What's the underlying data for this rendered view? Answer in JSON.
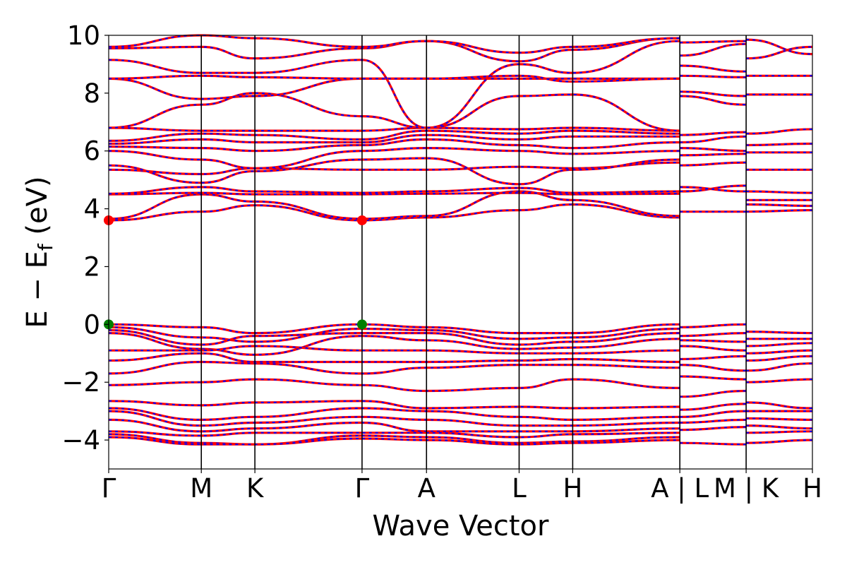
{
  "chart_data": {
    "type": "line",
    "title": "",
    "xlabel": "Wave Vector",
    "ylabel_main": "E − E",
    "ylabel_sub": "f",
    "ylabel_tail": " (eV)",
    "ylim": [
      -5,
      10
    ],
    "yticks": [
      10,
      8,
      6,
      4,
      2,
      0,
      -2,
      -4
    ],
    "ytick_labels": [
      "10",
      "8",
      "6",
      "4",
      "2",
      "0",
      "−2",
      "−4"
    ],
    "x_range": [
      0,
      7.75
    ],
    "kpoints": [
      {
        "label": "Γ",
        "x": 0.0
      },
      {
        "label": "M",
        "x": 1.02
      },
      {
        "label": "K",
        "x": 1.61
      },
      {
        "label": "Γ",
        "x": 2.79
      },
      {
        "label": "A",
        "x": 3.5
      },
      {
        "label": "L",
        "x": 4.52
      },
      {
        "label": "H",
        "x": 5.11
      },
      {
        "label": "A | L",
        "x": 6.29
      },
      {
        "label": "M | K",
        "x": 7.02
      },
      {
        "label": "H",
        "x": 7.75
      }
    ],
    "grid": false,
    "colors": {
      "band_main": "#ff0000",
      "band_dash": "#0000ff",
      "cbm_marker": "#ff0000",
      "vbm_marker": "#008000"
    },
    "markers": [
      {
        "kind": "CBM",
        "x": 0.0,
        "y": 3.6
      },
      {
        "kind": "CBM",
        "x": 2.79,
        "y": 3.6
      },
      {
        "kind": "VBM",
        "x": 0.0,
        "y": 0.0
      },
      {
        "kind": "VBM",
        "x": 2.79,
        "y": 0.0
      }
    ],
    "series": [
      {
        "x": [
          0,
          1.02,
          1.61,
          2.79,
          3.5,
          4.52,
          5.11,
          6.29
        ],
        "y": [
          3.6,
          3.9,
          4.12,
          3.6,
          3.7,
          3.95,
          4.15,
          3.7
        ]
      },
      {
        "x": [
          0,
          1.02,
          1.61,
          2.79,
          3.5,
          4.52,
          5.11,
          6.29
        ],
        "y": [
          3.65,
          4.5,
          4.25,
          3.65,
          3.75,
          4.6,
          4.3,
          3.75
        ]
      },
      {
        "x": [
          0,
          1.02,
          1.61,
          2.79,
          3.5,
          4.52,
          5.11,
          6.29
        ],
        "y": [
          4.5,
          4.55,
          4.5,
          4.5,
          4.52,
          4.55,
          4.5,
          4.52
        ]
      },
      {
        "x": [
          0,
          1.02,
          1.61,
          2.79,
          3.5,
          4.52,
          5.11,
          6.29
        ],
        "y": [
          4.52,
          4.75,
          4.6,
          4.55,
          4.6,
          4.72,
          4.55,
          4.6
        ]
      },
      {
        "x": [
          0,
          1.02,
          1.61,
          2.79,
          3.5,
          4.52,
          5.11,
          6.29
        ],
        "y": [
          5.35,
          5.2,
          5.4,
          5.35,
          5.35,
          5.45,
          5.4,
          5.6
        ]
      },
      {
        "x": [
          0,
          1.02,
          1.61,
          2.79,
          3.5,
          4.52,
          5.11,
          6.29
        ],
        "y": [
          5.5,
          4.9,
          5.3,
          5.7,
          5.75,
          4.85,
          5.35,
          5.7
        ]
      },
      {
        "x": [
          0,
          1.02,
          1.61,
          2.79,
          3.5,
          4.52,
          5.11,
          6.29
        ],
        "y": [
          6.0,
          5.7,
          5.4,
          6.0,
          6.1,
          6.0,
          5.9,
          6.0
        ]
      },
      {
        "x": [
          0,
          1.02,
          1.61,
          2.79,
          3.5,
          4.52,
          5.11,
          6.29
        ],
        "y": [
          6.15,
          6.1,
          6.0,
          6.2,
          6.4,
          6.2,
          6.1,
          6.3
        ]
      },
      {
        "x": [
          0,
          1.02,
          1.61,
          2.79,
          3.5,
          4.52,
          5.11,
          6.29
        ],
        "y": [
          6.25,
          6.4,
          6.3,
          6.3,
          6.55,
          6.4,
          6.5,
          6.5
        ]
      },
      {
        "x": [
          0,
          1.02,
          1.61,
          2.79,
          3.5,
          4.52,
          5.11,
          6.29
        ],
        "y": [
          6.35,
          6.6,
          6.55,
          6.4,
          6.7,
          6.6,
          6.7,
          6.6
        ]
      },
      {
        "x": [
          0,
          1.02,
          1.61,
          2.79,
          3.5,
          4.52,
          5.11,
          6.29
        ],
        "y": [
          6.8,
          6.7,
          6.7,
          6.7,
          6.8,
          6.75,
          6.8,
          6.7
        ]
      },
      {
        "x": [
          0,
          1.02,
          1.61,
          2.79,
          3.5,
          4.52,
          5.11,
          6.29
        ],
        "y": [
          6.8,
          7.6,
          8.0,
          7.2,
          6.8,
          7.9,
          7.95,
          6.7
        ]
      },
      {
        "x": [
          0,
          1.02,
          1.61,
          2.79,
          3.5,
          4.52,
          5.11,
          6.29
        ],
        "y": [
          8.5,
          7.8,
          7.9,
          8.5,
          8.5,
          8.5,
          8.5,
          8.5
        ]
      },
      {
        "x": [
          0,
          1.02,
          1.61,
          2.79,
          3.5,
          4.52,
          5.11,
          6.29
        ],
        "y": [
          8.5,
          8.6,
          8.55,
          8.5,
          8.5,
          8.6,
          8.4,
          8.5
        ]
      },
      {
        "x": [
          0,
          1.02,
          1.61,
          2.79,
          3.5,
          4.52,
          5.11,
          6.29
        ],
        "y": [
          9.15,
          8.7,
          8.7,
          9.15,
          6.8,
          9.0,
          8.7,
          9.8
        ]
      },
      {
        "x": [
          0,
          1.02,
          1.61,
          2.79,
          3.5,
          4.52,
          5.11,
          6.29
        ],
        "y": [
          9.55,
          9.6,
          9.2,
          9.55,
          9.8,
          9.1,
          9.5,
          9.9
        ]
      },
      {
        "x": [
          0,
          1.02,
          1.61,
          2.79,
          3.5,
          4.52,
          5.11,
          6.29
        ],
        "y": [
          9.6,
          10.0,
          9.9,
          9.6,
          9.8,
          9.4,
          9.6,
          9.9
        ]
      },
      {
        "x": [
          0,
          1.02,
          1.61,
          2.79,
          3.5,
          4.52,
          5.11,
          6.29
        ],
        "y": [
          0.0,
          -0.1,
          -0.3,
          0.0,
          -0.1,
          -0.3,
          -0.3,
          0.0
        ]
      },
      {
        "x": [
          0,
          1.02,
          1.61,
          2.79,
          3.5,
          4.52,
          5.11,
          6.29
        ],
        "y": [
          -0.1,
          -0.45,
          -0.6,
          -0.15,
          -0.2,
          -0.5,
          -0.45,
          -0.15
        ]
      },
      {
        "x": [
          0,
          1.02,
          1.61,
          2.79,
          3.5,
          4.52,
          5.11,
          6.29
        ],
        "y": [
          -0.2,
          -0.7,
          -0.4,
          -0.3,
          -0.3,
          -0.7,
          -0.6,
          -0.3
        ]
      },
      {
        "x": [
          0,
          1.02,
          1.61,
          2.79,
          3.5,
          4.52,
          5.11,
          6.29
        ],
        "y": [
          -0.3,
          -0.85,
          -1.05,
          -0.4,
          -0.55,
          -0.85,
          -0.8,
          -0.5
        ]
      },
      {
        "x": [
          0,
          1.02,
          1.61,
          2.79,
          3.5,
          4.52,
          5.11,
          6.29
        ],
        "y": [
          -0.9,
          -0.9,
          -0.75,
          -0.9,
          -0.9,
          -1.0,
          -1.0,
          -0.9
        ]
      },
      {
        "x": [
          0,
          1.02,
          1.61,
          2.79,
          3.5,
          4.52,
          5.11,
          6.29
        ],
        "y": [
          -1.25,
          -1.0,
          -1.3,
          -1.3,
          -1.3,
          -1.25,
          -1.2,
          -1.3
        ]
      },
      {
        "x": [
          0,
          1.02,
          1.61,
          2.79,
          3.5,
          4.52,
          5.11,
          6.29
        ],
        "y": [
          -1.7,
          -1.3,
          -1.35,
          -1.7,
          -1.5,
          -1.4,
          -1.4,
          -1.5
        ]
      },
      {
        "x": [
          0,
          1.02,
          1.61,
          2.79,
          3.5,
          4.52,
          5.11,
          6.29
        ],
        "y": [
          -2.1,
          -2.0,
          -1.9,
          -2.1,
          -2.3,
          -2.2,
          -1.9,
          -2.2
        ]
      },
      {
        "x": [
          0,
          1.02,
          1.61,
          2.79,
          3.5,
          4.52,
          5.11,
          6.29
        ],
        "y": [
          -2.65,
          -2.8,
          -2.7,
          -2.65,
          -2.9,
          -2.85,
          -2.9,
          -2.85
        ]
      },
      {
        "x": [
          0,
          1.02,
          1.61,
          2.79,
          3.5,
          4.52,
          5.11,
          6.29
        ],
        "y": [
          -2.9,
          -3.3,
          -3.2,
          -2.9,
          -3.0,
          -3.2,
          -3.3,
          -3.2
        ]
      },
      {
        "x": [
          0,
          1.02,
          1.61,
          2.79,
          3.5,
          4.52,
          5.11,
          6.29
        ],
        "y": [
          -3.0,
          -3.5,
          -3.4,
          -3.2,
          -3.3,
          -3.5,
          -3.5,
          -3.4
        ]
      },
      {
        "x": [
          0,
          1.02,
          1.61,
          2.79,
          3.5,
          4.52,
          5.11,
          6.29
        ],
        "y": [
          -3.3,
          -3.7,
          -3.6,
          -3.4,
          -3.7,
          -3.7,
          -3.7,
          -3.6
        ]
      },
      {
        "x": [
          0,
          1.02,
          1.61,
          2.79,
          3.5,
          4.52,
          5.11,
          6.29
        ],
        "y": [
          -3.7,
          -3.85,
          -3.75,
          -3.75,
          -3.75,
          -3.9,
          -3.8,
          -3.75
        ]
      },
      {
        "x": [
          0,
          1.02,
          1.61,
          2.79,
          3.5,
          4.52,
          5.11,
          6.29
        ],
        "y": [
          -3.8,
          -4.1,
          -4.15,
          -3.85,
          -3.9,
          -4.1,
          -4.05,
          -3.9
        ]
      },
      {
        "x": [
          0,
          1.02,
          1.61,
          2.79,
          3.5,
          4.52,
          5.11,
          6.29
        ],
        "y": [
          -3.9,
          -4.15,
          -4.15,
          -3.95,
          -4.0,
          -4.15,
          -4.1,
          -4.0
        ]
      },
      {
        "x": [
          6.29,
          7.02
        ],
        "y": [
          3.9,
          3.9
        ]
      },
      {
        "x": [
          6.29,
          7.02
        ],
        "y": [
          4.6,
          4.8
        ]
      },
      {
        "x": [
          6.29,
          7.02
        ],
        "y": [
          4.75,
          4.6
        ]
      },
      {
        "x": [
          6.29,
          7.02
        ],
        "y": [
          5.5,
          5.6
        ]
      },
      {
        "x": [
          6.29,
          7.02
        ],
        "y": [
          5.85,
          5.9
        ]
      },
      {
        "x": [
          6.29,
          7.02
        ],
        "y": [
          6.1,
          6.0
        ]
      },
      {
        "x": [
          6.29,
          7.02
        ],
        "y": [
          6.3,
          6.5
        ]
      },
      {
        "x": [
          6.29,
          7.02
        ],
        "y": [
          6.55,
          6.65
        ]
      },
      {
        "x": [
          6.29,
          7.02
        ],
        "y": [
          7.9,
          7.6
        ]
      },
      {
        "x": [
          6.29,
          7.02
        ],
        "y": [
          8.05,
          7.9
        ]
      },
      {
        "x": [
          6.29,
          7.02
        ],
        "y": [
          8.6,
          8.55
        ]
      },
      {
        "x": [
          6.29,
          7.02
        ],
        "y": [
          8.95,
          8.75
        ]
      },
      {
        "x": [
          6.29,
          7.02
        ],
        "y": [
          9.3,
          9.7
        ]
      },
      {
        "x": [
          6.29,
          7.02
        ],
        "y": [
          9.75,
          9.8
        ]
      },
      {
        "x": [
          6.29,
          7.02
        ],
        "y": [
          -0.1,
          0.0
        ]
      },
      {
        "x": [
          6.29,
          7.02
        ],
        "y": [
          -0.4,
          -0.3
        ]
      },
      {
        "x": [
          6.29,
          7.02
        ],
        "y": [
          -0.55,
          -0.6
        ]
      },
      {
        "x": [
          6.29,
          7.02
        ],
        "y": [
          -0.75,
          -0.9
        ]
      },
      {
        "x": [
          6.29,
          7.02
        ],
        "y": [
          -1.2,
          -1.1
        ]
      },
      {
        "x": [
          6.29,
          7.02
        ],
        "y": [
          -1.4,
          -1.6
        ]
      },
      {
        "x": [
          6.29,
          7.02
        ],
        "y": [
          -1.8,
          -1.9
        ]
      },
      {
        "x": [
          6.29,
          7.02
        ],
        "y": [
          -2.5,
          -2.3
        ]
      },
      {
        "x": [
          6.29,
          7.02
        ],
        "y": [
          -2.95,
          -2.75
        ]
      },
      {
        "x": [
          6.29,
          7.02
        ],
        "y": [
          -3.2,
          -3.0
        ]
      },
      {
        "x": [
          6.29,
          7.02
        ],
        "y": [
          -3.4,
          -3.3
        ]
      },
      {
        "x": [
          6.29,
          7.02
        ],
        "y": [
          -3.65,
          -3.55
        ]
      },
      {
        "x": [
          6.29,
          7.02
        ],
        "y": [
          -4.1,
          -4.15
        ]
      },
      {
        "x": [
          7.02,
          7.75
        ],
        "y": [
          3.9,
          3.95
        ]
      },
      {
        "x": [
          7.02,
          7.75
        ],
        "y": [
          4.15,
          4.1
        ]
      },
      {
        "x": [
          7.02,
          7.75
        ],
        "y": [
          4.3,
          4.3
        ]
      },
      {
        "x": [
          7.02,
          7.75
        ],
        "y": [
          4.6,
          4.55
        ]
      },
      {
        "x": [
          7.02,
          7.75
        ],
        "y": [
          5.35,
          5.35
        ]
      },
      {
        "x": [
          7.02,
          7.75
        ],
        "y": [
          5.95,
          5.95
        ]
      },
      {
        "x": [
          7.02,
          7.75
        ],
        "y": [
          6.2,
          6.25
        ]
      },
      {
        "x": [
          7.02,
          7.75
        ],
        "y": [
          6.6,
          6.75
        ]
      },
      {
        "x": [
          7.02,
          7.75
        ],
        "y": [
          7.95,
          7.95
        ]
      },
      {
        "x": [
          7.02,
          7.75
        ],
        "y": [
          8.6,
          8.6
        ]
      },
      {
        "x": [
          7.02,
          7.75
        ],
        "y": [
          9.2,
          9.6
        ]
      },
      {
        "x": [
          7.02,
          7.75
        ],
        "y": [
          9.85,
          9.35
        ]
      },
      {
        "x": [
          7.02,
          7.75
        ],
        "y": [
          -0.25,
          -0.3
        ]
      },
      {
        "x": [
          7.02,
          7.75
        ],
        "y": [
          -0.5,
          -0.5
        ]
      },
      {
        "x": [
          7.02,
          7.75
        ],
        "y": [
          -0.75,
          -0.65
        ]
      },
      {
        "x": [
          7.02,
          7.75
        ],
        "y": [
          -1.0,
          -0.9
        ]
      },
      {
        "x": [
          7.02,
          7.75
        ],
        "y": [
          -1.25,
          -1.1
        ]
      },
      {
        "x": [
          7.02,
          7.75
        ],
        "y": [
          -1.6,
          -1.35
        ]
      },
      {
        "x": [
          7.02,
          7.75
        ],
        "y": [
          -2.0,
          -1.9
        ]
      },
      {
        "x": [
          7.02,
          7.75
        ],
        "y": [
          -2.7,
          -2.9
        ]
      },
      {
        "x": [
          7.02,
          7.75
        ],
        "y": [
          -3.0,
          -3.0
        ]
      },
      {
        "x": [
          7.02,
          7.75
        ],
        "y": [
          -3.25,
          -3.3
        ]
      },
      {
        "x": [
          7.02,
          7.75
        ],
        "y": [
          -3.5,
          -3.6
        ]
      },
      {
        "x": [
          7.02,
          7.75
        ],
        "y": [
          -3.75,
          -3.7
        ]
      },
      {
        "x": [
          7.02,
          7.75
        ],
        "y": [
          -4.1,
          -4.0
        ]
      }
    ]
  }
}
